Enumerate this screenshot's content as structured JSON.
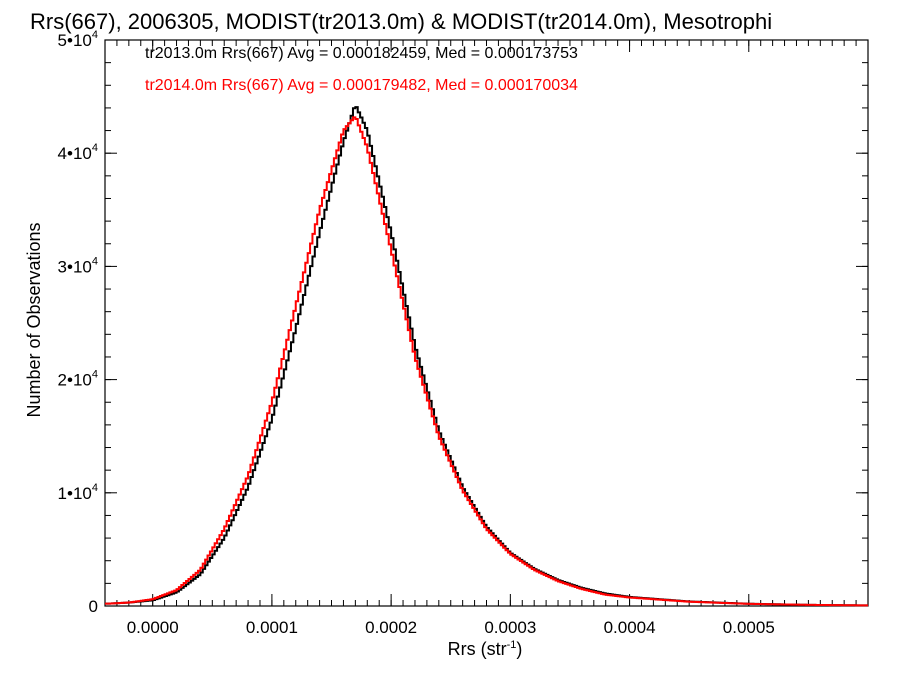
{
  "chart_data": {
    "type": "histogram",
    "title": "Rrs(667), 2006305, MODIST(tr2013.0m) & MODIST(tr2014.0m), Mesotrophi",
    "xlabel": {
      "base": "Rrs (str",
      "sup": "-1",
      "tail": ")"
    },
    "ylabel": "Number of Observations",
    "xlim": [
      -4e-05,
      0.0006
    ],
    "ylim": [
      0,
      50000
    ],
    "x_ticks": [
      {
        "value": 0.0,
        "label": "0.0000"
      },
      {
        "value": 0.0001,
        "label": "0.0001"
      },
      {
        "value": 0.0002,
        "label": "0.0002"
      },
      {
        "value": 0.0003,
        "label": "0.0003"
      },
      {
        "value": 0.0004,
        "label": "0.0004"
      },
      {
        "value": 0.0005,
        "label": "0.0005"
      }
    ],
    "y_ticks": [
      {
        "value": 0,
        "mant": "0",
        "exp": ""
      },
      {
        "value": 10000,
        "mant": "1•10",
        "exp": "4"
      },
      {
        "value": 20000,
        "mant": "2•10",
        "exp": "4"
      },
      {
        "value": 30000,
        "mant": "3•10",
        "exp": "4"
      },
      {
        "value": 40000,
        "mant": "4•10",
        "exp": "4"
      },
      {
        "value": 50000,
        "mant": "5•10",
        "exp": "4"
      }
    ],
    "grid": false,
    "legend_position": "top-left",
    "series": [
      {
        "name": "tr2013.0m Rrs(667) Avg = 0.000182459, Med = 0.000173753",
        "color": "#000000",
        "points": [
          [
            -4e-05,
            200
          ],
          [
            -2e-05,
            300
          ],
          [
            0.0,
            500
          ],
          [
            2e-05,
            1200
          ],
          [
            4e-05,
            2800
          ],
          [
            6e-05,
            6000
          ],
          [
            8e-05,
            10500
          ],
          [
            0.0001,
            16500
          ],
          [
            0.00012,
            24500
          ],
          [
            0.00014,
            33000
          ],
          [
            0.00016,
            41000
          ],
          [
            0.00017,
            44300
          ],
          [
            0.00018,
            42000
          ],
          [
            0.0002,
            33000
          ],
          [
            0.00022,
            23000
          ],
          [
            0.00024,
            15500
          ],
          [
            0.00026,
            10500
          ],
          [
            0.00028,
            7000
          ],
          [
            0.0003,
            4700
          ],
          [
            0.00032,
            3300
          ],
          [
            0.00034,
            2300
          ],
          [
            0.00036,
            1600
          ],
          [
            0.00038,
            1100
          ],
          [
            0.0004,
            800
          ],
          [
            0.00045,
            400
          ],
          [
            0.0005,
            200
          ],
          [
            0.00055,
            100
          ],
          [
            0.0006,
            50
          ]
        ]
      },
      {
        "name": "tr2014.0m Rrs(667) Avg = 0.000179482, Med = 0.000170034",
        "color": "#ff0000",
        "points": [
          [
            -4e-05,
            200
          ],
          [
            -2e-05,
            300
          ],
          [
            0.0,
            600
          ],
          [
            2e-05,
            1400
          ],
          [
            4e-05,
            3200
          ],
          [
            6e-05,
            6800
          ],
          [
            8e-05,
            11500
          ],
          [
            0.0001,
            18000
          ],
          [
            0.00012,
            26500
          ],
          [
            0.00014,
            35000
          ],
          [
            0.00016,
            42000
          ],
          [
            0.00017,
            43300
          ],
          [
            0.00018,
            40500
          ],
          [
            0.0002,
            31500
          ],
          [
            0.00022,
            22000
          ],
          [
            0.00024,
            15000
          ],
          [
            0.00026,
            10200
          ],
          [
            0.00028,
            6800
          ],
          [
            0.0003,
            4600
          ],
          [
            0.00032,
            3200
          ],
          [
            0.00034,
            2200
          ],
          [
            0.00036,
            1500
          ],
          [
            0.00038,
            1000
          ],
          [
            0.0004,
            750
          ],
          [
            0.00045,
            380
          ],
          [
            0.0005,
            190
          ],
          [
            0.00055,
            100
          ],
          [
            0.0006,
            50
          ]
        ]
      }
    ]
  }
}
